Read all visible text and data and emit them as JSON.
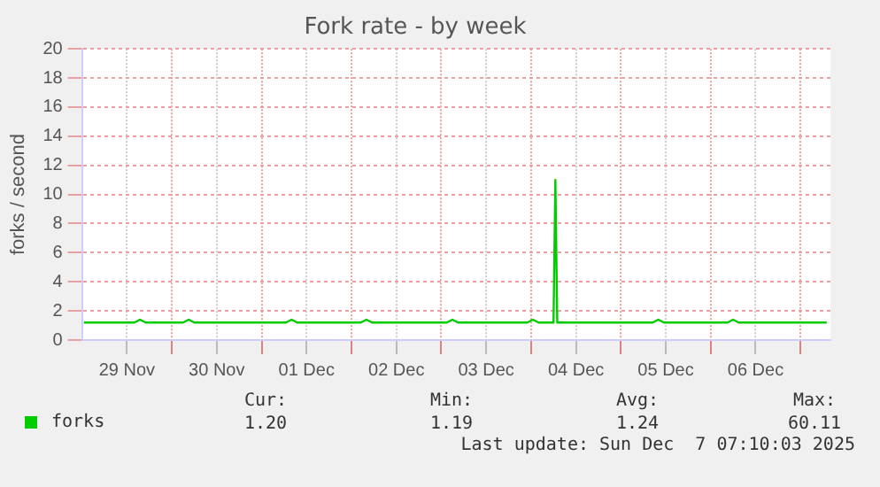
{
  "chart_data": {
    "type": "line",
    "title": "Fork rate - by week",
    "ylabel": "forks / second",
    "xlim": [
      "2025-11-29T00:00",
      "2025-12-07T08:00"
    ],
    "xticks": [
      {
        "value": "2025-11-29T12:00",
        "label": "29 Nov"
      },
      {
        "value": "2025-11-30T00:00",
        "label": null
      },
      {
        "value": "2025-11-30T12:00",
        "label": "30 Nov"
      },
      {
        "value": "2025-12-01T00:00",
        "label": null
      },
      {
        "value": "2025-12-01T12:00",
        "label": "01 Dec"
      },
      {
        "value": "2025-12-02T00:00",
        "label": null
      },
      {
        "value": "2025-12-02T12:00",
        "label": "02 Dec"
      },
      {
        "value": "2025-12-03T00:00",
        "label": null
      },
      {
        "value": "2025-12-03T12:00",
        "label": "03 Dec"
      },
      {
        "value": "2025-12-04T00:00",
        "label": null
      },
      {
        "value": "2025-12-04T12:00",
        "label": "04 Dec"
      },
      {
        "value": "2025-12-05T00:00",
        "label": null
      },
      {
        "value": "2025-12-05T12:00",
        "label": "05 Dec"
      },
      {
        "value": "2025-12-06T00:00",
        "label": null
      },
      {
        "value": "2025-12-06T12:00",
        "label": "06 Dec"
      },
      {
        "value": "2025-12-07T00:00",
        "label": null
      }
    ],
    "ylim": [
      0,
      20
    ],
    "yticks": [
      0,
      2,
      4,
      6,
      8,
      10,
      12,
      14,
      16,
      18,
      20
    ],
    "grid": true,
    "legend": "bottom",
    "series": [
      {
        "name": "forks",
        "color": "#00cc00",
        "x": [
          "2025-11-29T00:30",
          "2025-11-29T14:00",
          "2025-11-29T15:30",
          "2025-11-29T17:00",
          "2025-11-30T03:00",
          "2025-11-30T04:30",
          "2025-11-30T06:00",
          "2025-12-01T06:30",
          "2025-12-01T08:00",
          "2025-12-01T09:30",
          "2025-12-02T02:30",
          "2025-12-02T04:00",
          "2025-12-02T05:30",
          "2025-12-03T01:30",
          "2025-12-03T03:00",
          "2025-12-03T04:30",
          "2025-12-03T23:00",
          "2025-12-04T00:30",
          "2025-12-04T02:00",
          "2025-12-04T06:00",
          "2025-12-04T06:30",
          "2025-12-04T07:00",
          "2025-12-05T08:30",
          "2025-12-05T10:00",
          "2025-12-05T11:30",
          "2025-12-06T04:30",
          "2025-12-06T06:00",
          "2025-12-06T07:30",
          "2025-12-07T07:00"
        ],
        "values": [
          1.2,
          1.2,
          1.4,
          1.2,
          1.2,
          1.4,
          1.2,
          1.2,
          1.4,
          1.2,
          1.2,
          1.4,
          1.2,
          1.2,
          1.4,
          1.2,
          1.2,
          1.4,
          1.2,
          1.2,
          11,
          1.2,
          1.2,
          1.4,
          1.2,
          1.2,
          1.4,
          1.2,
          1.2
        ]
      }
    ],
    "annotations": [
      "Cur:",
      "Min:",
      "Avg:",
      "Max:",
      "1.20",
      "1.19",
      "1.24",
      "60.11",
      "Last update: Sun Dec  7 07:10:03 2025"
    ]
  }
}
